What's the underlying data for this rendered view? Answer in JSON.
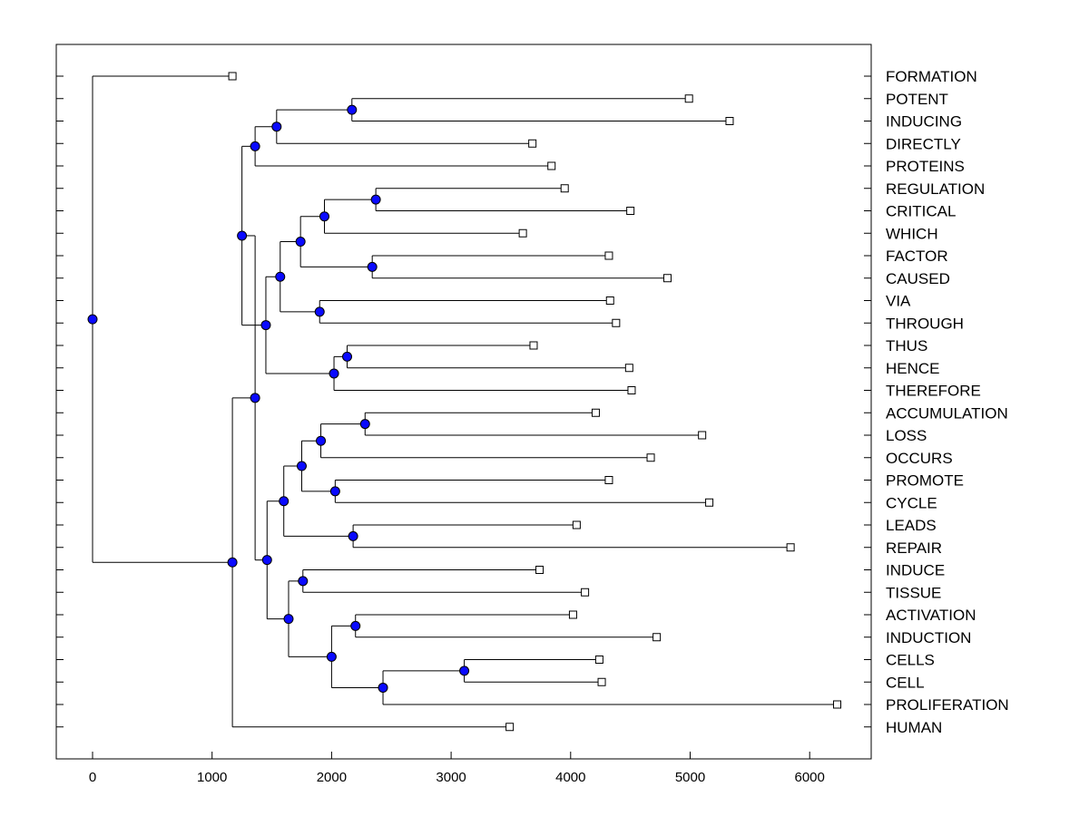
{
  "chart_data": {
    "type": "dendrogram",
    "title": "",
    "xlabel": "",
    "ylabel": "",
    "xlim": [
      -300,
      6550
    ],
    "x_ticks": [
      0,
      1000,
      2000,
      3000,
      4000,
      5000,
      6000
    ],
    "x_tick_labels": [
      "0",
      "1000",
      "2000",
      "3000",
      "4000",
      "5000",
      "6000"
    ],
    "leaves": [
      {
        "label": "FORMATION",
        "value": 1170
      },
      {
        "label": "POTENT",
        "value": 4990
      },
      {
        "label": "INDUCING",
        "value": 5330
      },
      {
        "label": "DIRECTLY",
        "value": 3680
      },
      {
        "label": "PROTEINS",
        "value": 3840
      },
      {
        "label": "REGULATION",
        "value": 3950
      },
      {
        "label": "CRITICAL",
        "value": 4500
      },
      {
        "label": "WHICH",
        "value": 3600
      },
      {
        "label": "FACTOR",
        "value": 4320
      },
      {
        "label": "CAUSED",
        "value": 4810
      },
      {
        "label": "VIA",
        "value": 4330
      },
      {
        "label": "THROUGH",
        "value": 4380
      },
      {
        "label": "THUS",
        "value": 3690
      },
      {
        "label": "HENCE",
        "value": 4490
      },
      {
        "label": "THEREFORE",
        "value": 4510
      },
      {
        "label": "ACCUMULATION",
        "value": 4210
      },
      {
        "label": "LOSS",
        "value": 5100
      },
      {
        "label": "OCCURS",
        "value": 4670
      },
      {
        "label": "PROMOTE",
        "value": 4320
      },
      {
        "label": "CYCLE",
        "value": 5160
      },
      {
        "label": "LEADS",
        "value": 4050
      },
      {
        "label": "REPAIR",
        "value": 5840
      },
      {
        "label": "INDUCE",
        "value": 3740
      },
      {
        "label": "TISSUE",
        "value": 4120
      },
      {
        "label": "ACTIVATION",
        "value": 4020
      },
      {
        "label": "INDUCTION",
        "value": 4720
      },
      {
        "label": "CELLS",
        "value": 4240
      },
      {
        "label": "CELL",
        "value": 4260
      },
      {
        "label": "PROLIFERATION",
        "value": 6230
      },
      {
        "label": "HUMAN",
        "value": 3490
      }
    ],
    "merges": [
      {
        "id": "m1",
        "value": 2170,
        "children": [
          "POTENT",
          "INDUCING"
        ]
      },
      {
        "id": "m2",
        "value": 1540,
        "children": [
          "m1",
          "DIRECTLY"
        ]
      },
      {
        "id": "m3",
        "value": 1360,
        "children": [
          "m2",
          "PROTEINS"
        ]
      },
      {
        "id": "m4",
        "value": 2370,
        "children": [
          "REGULATION",
          "CRITICAL"
        ]
      },
      {
        "id": "m5",
        "value": 1940,
        "children": [
          "m4",
          "WHICH"
        ]
      },
      {
        "id": "m6",
        "value": 2340,
        "children": [
          "FACTOR",
          "CAUSED"
        ]
      },
      {
        "id": "m7",
        "value": 1740,
        "children": [
          "m5",
          "m6"
        ]
      },
      {
        "id": "m8",
        "value": 1900,
        "children": [
          "VIA",
          "THROUGH"
        ]
      },
      {
        "id": "m9",
        "value": 1570,
        "children": [
          "m7",
          "m8"
        ]
      },
      {
        "id": "m10",
        "value": 2130,
        "children": [
          "THUS",
          "HENCE"
        ]
      },
      {
        "id": "m11",
        "value": 2020,
        "children": [
          "m10",
          "THEREFORE"
        ]
      },
      {
        "id": "m12",
        "value": 1450,
        "children": [
          "m9",
          "m11"
        ]
      },
      {
        "id": "m13",
        "value": 1250,
        "children": [
          "m3",
          "m12"
        ]
      },
      {
        "id": "m14",
        "value": 2280,
        "children": [
          "ACCUMULATION",
          "LOSS"
        ]
      },
      {
        "id": "m15",
        "value": 1910,
        "children": [
          "m14",
          "OCCURS"
        ]
      },
      {
        "id": "m16",
        "value": 2030,
        "children": [
          "PROMOTE",
          "CYCLE"
        ]
      },
      {
        "id": "m17",
        "value": 1750,
        "children": [
          "m15",
          "m16"
        ]
      },
      {
        "id": "m18",
        "value": 2180,
        "children": [
          "LEADS",
          "REPAIR"
        ]
      },
      {
        "id": "m19",
        "value": 1600,
        "children": [
          "m17",
          "m18"
        ]
      },
      {
        "id": "m20",
        "value": 1760,
        "children": [
          "INDUCE",
          "TISSUE"
        ]
      },
      {
        "id": "m21",
        "value": 2200,
        "children": [
          "ACTIVATION",
          "INDUCTION"
        ]
      },
      {
        "id": "m22",
        "value": 3110,
        "children": [
          "CELLS",
          "CELL"
        ]
      },
      {
        "id": "m23",
        "value": 2430,
        "children": [
          "m22",
          "PROLIFERATION"
        ]
      },
      {
        "id": "m24",
        "value": 2000,
        "children": [
          "m21",
          "m23"
        ]
      },
      {
        "id": "m25",
        "value": 1640,
        "children": [
          "m20",
          "m24"
        ]
      },
      {
        "id": "m26",
        "value": 1460,
        "children": [
          "m19",
          "m25"
        ]
      },
      {
        "id": "m27",
        "value": 1360,
        "children": [
          "m13",
          "m26"
        ]
      },
      {
        "id": "m28",
        "value": 1170,
        "children": [
          "m27",
          "HUMAN"
        ]
      },
      {
        "id": "m29",
        "value": 0,
        "children": [
          "FORMATION",
          "m28"
        ]
      }
    ],
    "colors": {
      "node": "#0a0aff",
      "leaf": "#ffffff",
      "line": "#000000"
    }
  }
}
